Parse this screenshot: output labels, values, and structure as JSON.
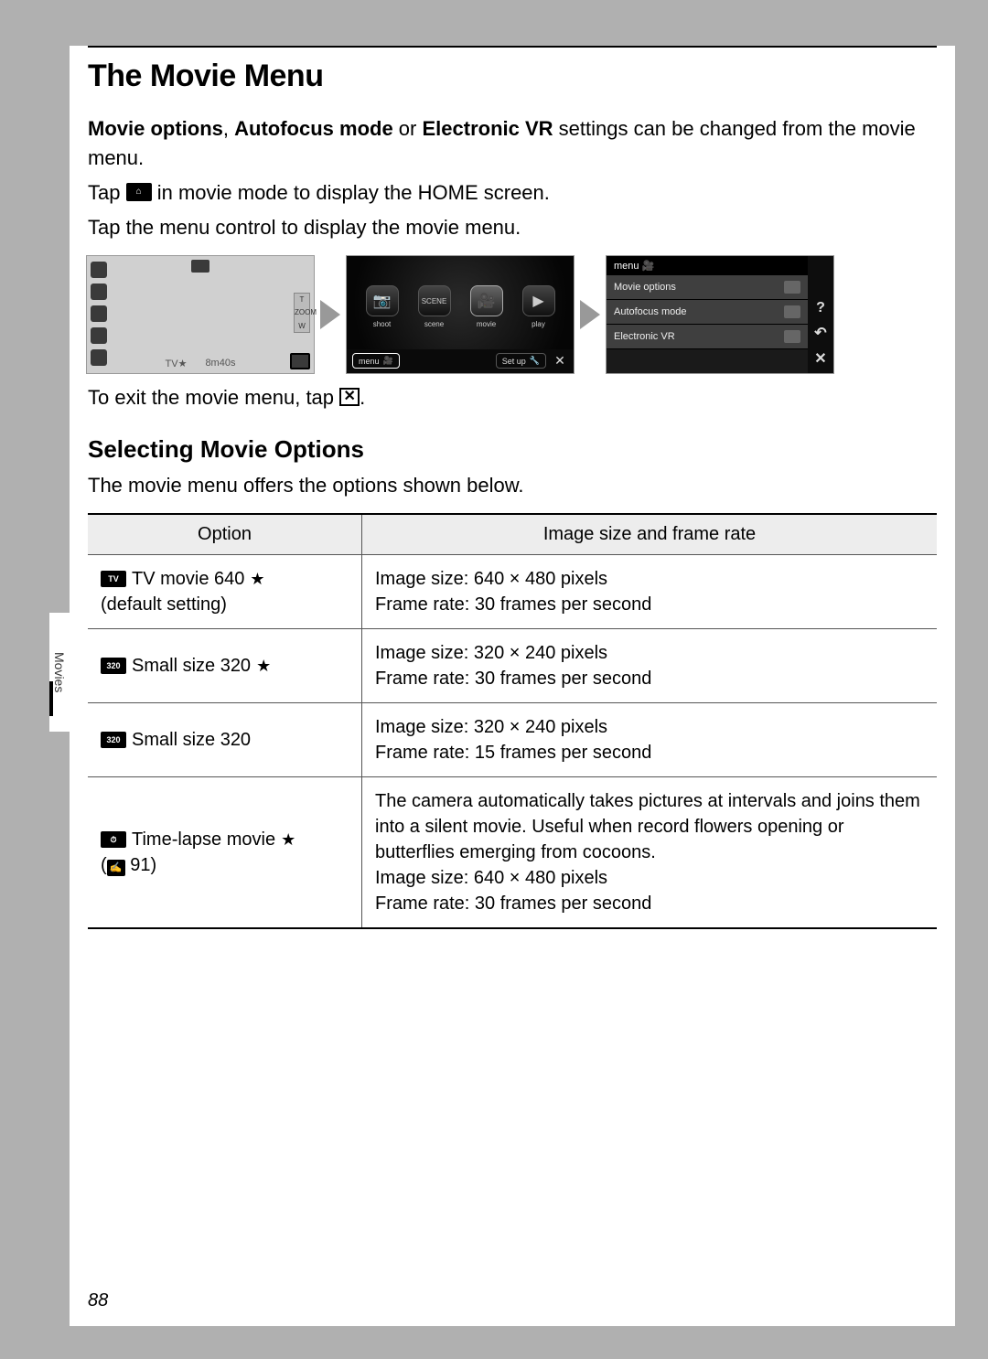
{
  "page_number": "88",
  "side_tab": "Movies",
  "title": "The Movie Menu",
  "intro": {
    "bold1": "Movie options",
    "sep1": ", ",
    "bold2": "Autofocus mode",
    "sep2": " or ",
    "bold3": "Electronic VR",
    "rest": " settings can be changed from the movie menu."
  },
  "line2a": "Tap ",
  "line2b": " in movie mode to display the HOME screen.",
  "line3": "Tap the menu control to display the movie menu.",
  "exit_a": "To exit the movie menu, tap ",
  "exit_b": ".",
  "screen1": {
    "bottom_left": "TV★",
    "bottom_right": "8m40s",
    "zoom_t": "T",
    "zoom_w": "W"
  },
  "screen2": {
    "modes": [
      {
        "icon": "📷",
        "label": "shoot"
      },
      {
        "icon": "SCENE",
        "label": "scene"
      },
      {
        "icon": "🎥",
        "label": "movie",
        "sel": true
      },
      {
        "icon": "▶",
        "label": "play"
      }
    ],
    "menu_label": "menu",
    "setup_label": "Set up"
  },
  "screen3": {
    "header": "menu 🎥",
    "rows": [
      "Movie options",
      "Autofocus mode",
      "Electronic VR"
    ],
    "side": [
      "?",
      "↶",
      "✕"
    ]
  },
  "section2_title": "Selecting Movie Options",
  "section2_text": "The movie menu offers the options shown below.",
  "table": {
    "head": {
      "c1": "Option",
      "c2": "Image size and frame rate"
    },
    "rows": [
      {
        "icon": "TV",
        "label": "TV movie 640",
        "star": true,
        "sub": "(default setting)",
        "desc": "Image size: 640 × 480 pixels\nFrame rate: 30 frames per second"
      },
      {
        "icon": "320",
        "label": "Small size 320",
        "star": true,
        "sub": "",
        "desc": "Image size: 320 × 240 pixels\nFrame rate: 30 frames per second"
      },
      {
        "icon": "320",
        "label": "Small size 320",
        "star": false,
        "sub": "",
        "desc": "Image size: 320 × 240 pixels\nFrame rate: 15 frames per second"
      },
      {
        "icon": "⏱",
        "label": "Time-lapse movie",
        "star": true,
        "ref": "91",
        "desc": "The camera automatically takes pictures at intervals and joins them into a silent movie. Useful when record flowers opening or butterflies emerging from cocoons.\nImage size: 640 × 480 pixels\nFrame rate: 30 frames per second"
      }
    ]
  }
}
